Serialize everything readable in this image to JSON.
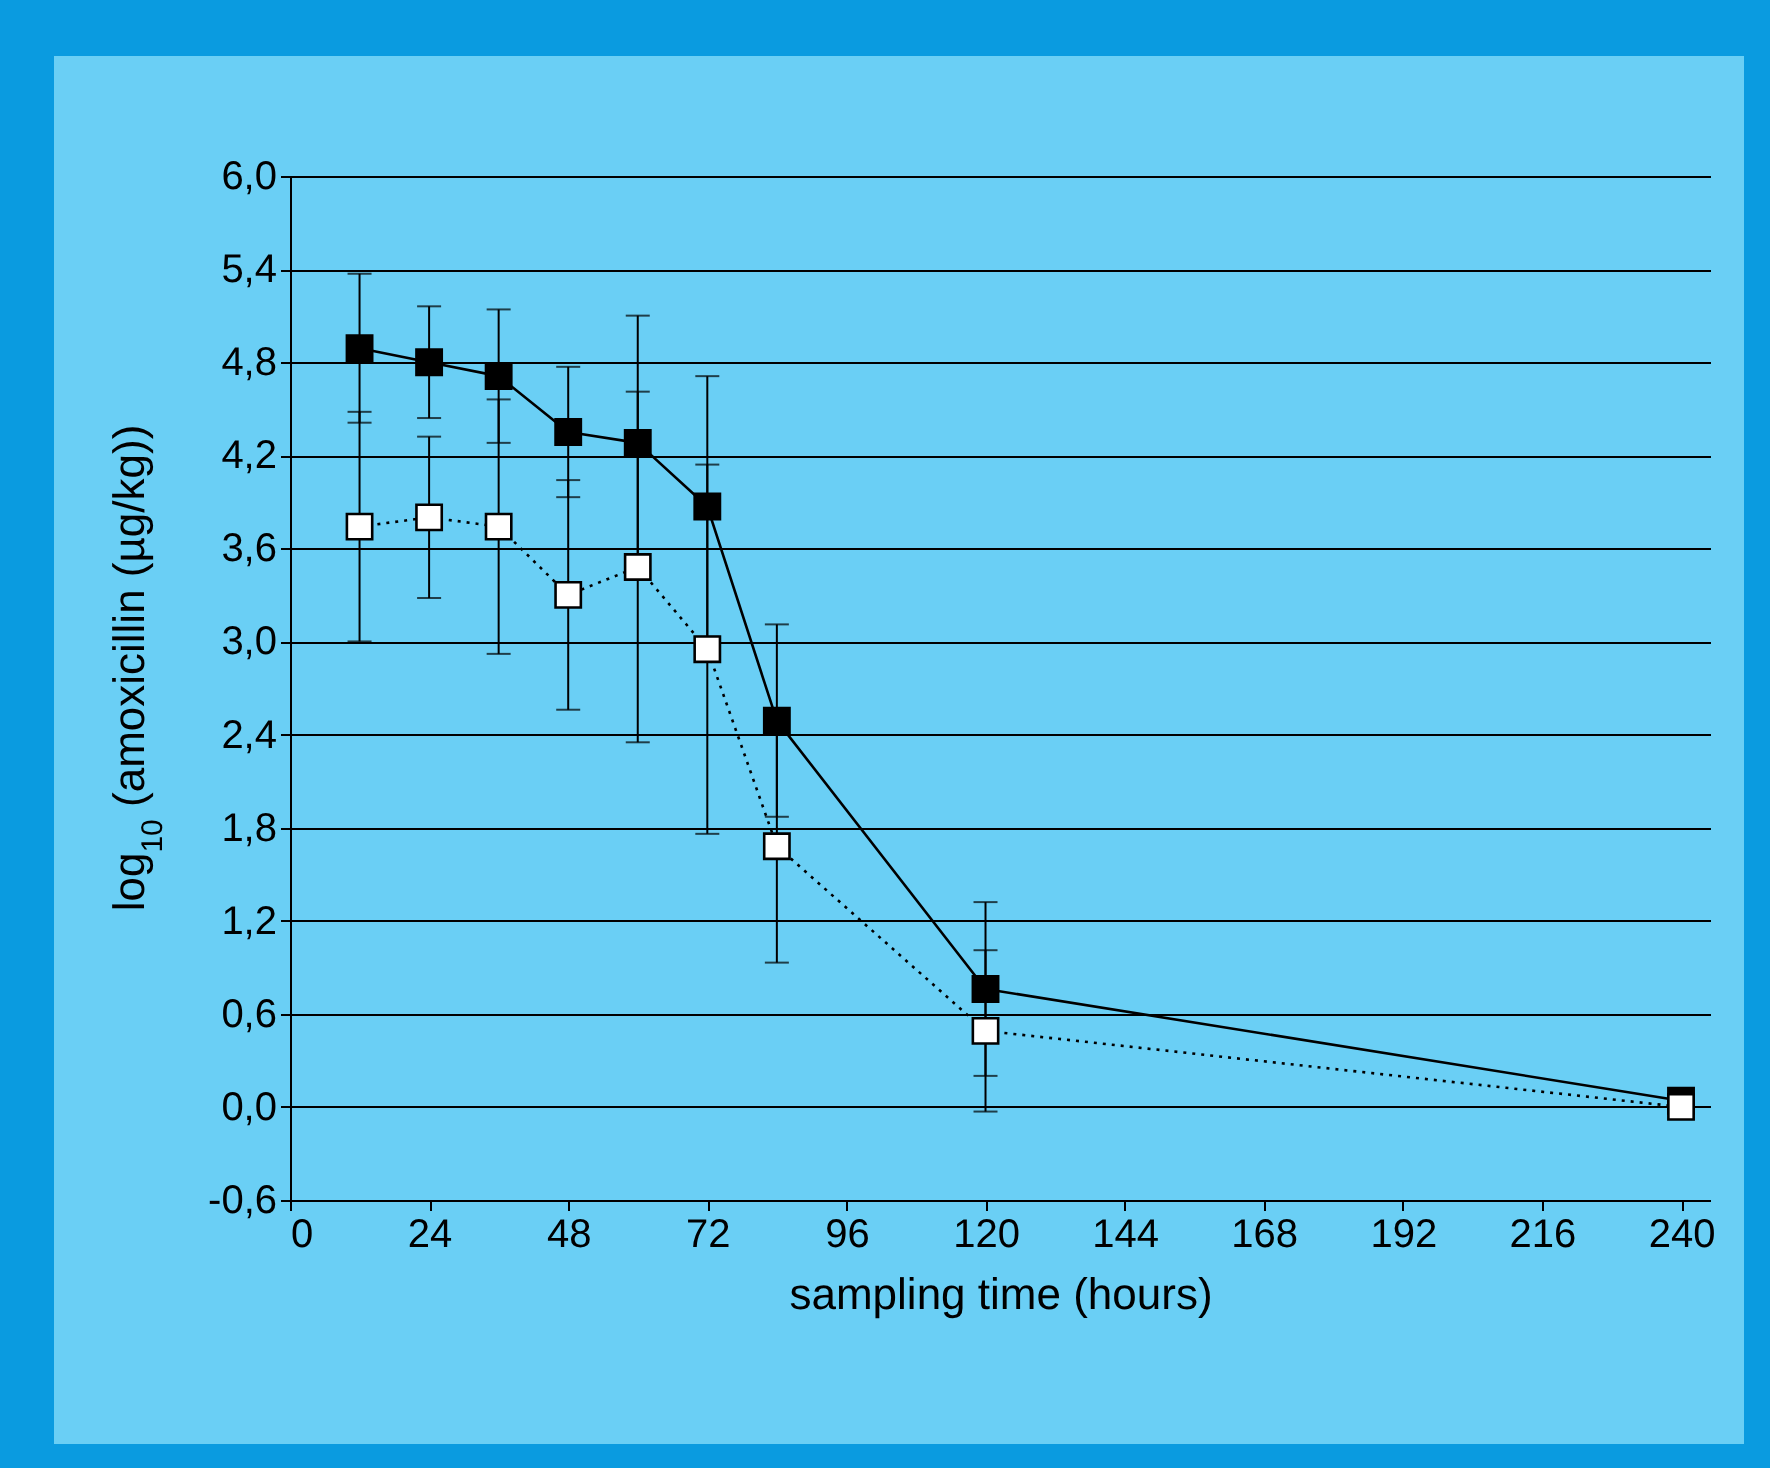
{
  "chart_data": {
    "type": "line",
    "xlabel": "sampling time (hours)",
    "ylabel": "log$_{10}$ (amoxicillin (µg/kg))",
    "x": [
      12,
      24,
      36,
      48,
      60,
      72,
      84,
      120,
      240
    ],
    "series": [
      {
        "color": "#000000",
        "values": [
          4.89,
          4.8,
          4.71,
          4.35,
          4.28,
          3.87,
          2.49,
          0.76,
          0.04
        ],
        "errors": [
          0.48,
          0.36,
          0.43,
          0.42,
          0.82,
          0.84,
          0.62,
          0.56,
          0.07
        ],
        "marker": "square",
        "line_style": "solid"
      },
      {
        "color": "#000000",
        "values": [
          3.74,
          3.8,
          3.74,
          3.3,
          3.48,
          2.95,
          1.68,
          0.49,
          0.0
        ],
        "errors": [
          0.74,
          0.52,
          0.82,
          0.74,
          1.13,
          1.19,
          0.75,
          0.52,
          null
        ],
        "marker": "square",
        "line_style": "dotted"
      }
    ],
    "xlim": [
      0,
      245
    ],
    "xticks": [
      0,
      24,
      48,
      72,
      96,
      120,
      144,
      168,
      192,
      216,
      240
    ],
    "ylim": [
      -0.6,
      6.0
    ],
    "yticks": [
      {
        "value": -0.6,
        "label": "-0,6"
      },
      {
        "value": 0,
        "label": "0,0"
      },
      {
        "value": 0.6,
        "label": "0,6"
      },
      {
        "value": 1.2,
        "label": "1,2"
      },
      {
        "value": 1.8,
        "label": "1,8"
      },
      {
        "value": 2.4,
        "label": "2,4"
      },
      {
        "value": 3.0,
        "label": "3,0"
      },
      {
        "value": 3.6,
        "label": "3,6"
      },
      {
        "value": 4.2,
        "label": "4,2"
      },
      {
        "value": 4.8,
        "label": "4,8"
      },
      {
        "value": 5.4,
        "label": "5,4"
      },
      {
        "value": 6.0,
        "label": "6,0"
      }
    ],
    "grid": "y"
  }
}
